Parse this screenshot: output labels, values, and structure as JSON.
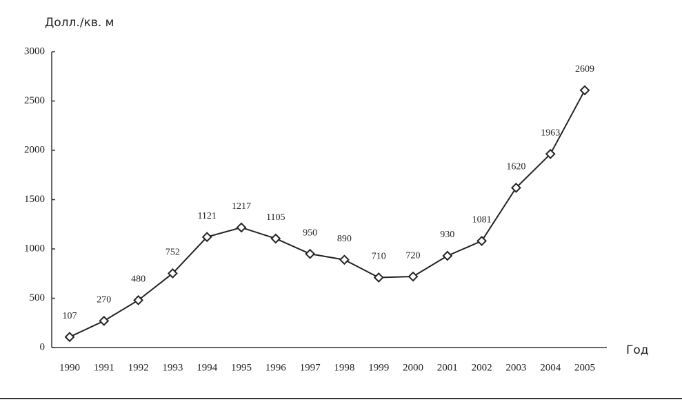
{
  "chart_data": {
    "type": "line",
    "y_label": "Долл./кв. м",
    "x_label": "Год",
    "categories": [
      "1990",
      "1991",
      "1992",
      "1993",
      "1994",
      "1995",
      "1996",
      "1997",
      "1998",
      "1999",
      "2000",
      "2001",
      "2002",
      "2003",
      "2004",
      "2005"
    ],
    "values": [
      107,
      270,
      480,
      752,
      1121,
      1217,
      1105,
      950,
      890,
      710,
      720,
      930,
      1081,
      1620,
      1963,
      2609
    ],
    "color": "#222222",
    "ylim": [
      0,
      3000
    ],
    "yticks": [
      0,
      500,
      1000,
      1500,
      2000,
      2500,
      3000
    ]
  }
}
